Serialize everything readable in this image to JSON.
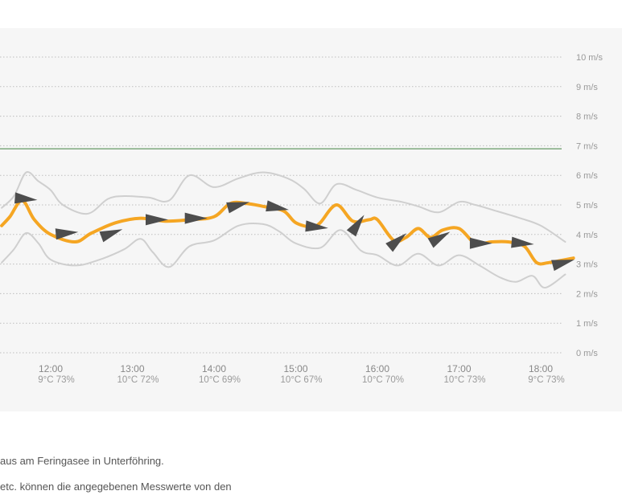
{
  "chart_data": {
    "type": "line",
    "y_unit": "m/s",
    "ylim": [
      0,
      10
    ],
    "y_ticks": [
      {
        "value": 10,
        "label": "10 m/s"
      },
      {
        "value": 9,
        "label": "9 m/s"
      },
      {
        "value": 8,
        "label": "8 m/s"
      },
      {
        "value": 7,
        "label": "7 m/s"
      },
      {
        "value": 6,
        "label": "6 m/s"
      },
      {
        "value": 5,
        "label": "5 m/s"
      },
      {
        "value": 4,
        "label": "4 m/s"
      },
      {
        "value": 3,
        "label": "3 m/s"
      },
      {
        "value": 2,
        "label": "2 m/s"
      },
      {
        "value": 1,
        "label": "1 m/s"
      },
      {
        "value": 0,
        "label": "0 m/s"
      }
    ],
    "x_ticks": [
      {
        "time": "12:00",
        "info": "9°C 73%"
      },
      {
        "time": "13:00",
        "info": "10°C 72%"
      },
      {
        "time": "14:00",
        "info": "10°C 69%"
      },
      {
        "time": "15:00",
        "info": "10°C 67%"
      },
      {
        "time": "16:00",
        "info": "10°C 70%"
      },
      {
        "time": "17:00",
        "info": "10°C 73%"
      },
      {
        "time": "18:00",
        "info": "9°C 73%"
      }
    ],
    "reference_line": {
      "value": 6.9,
      "color": "#3f7f3f"
    },
    "grid": "dotted",
    "series": [
      {
        "role": "average",
        "color": "#f5a623",
        "points": [
          [
            11.4,
            4.3
          ],
          [
            11.5,
            4.6
          ],
          [
            11.65,
            5.15
          ],
          [
            11.8,
            4.5
          ],
          [
            12.0,
            4.0
          ],
          [
            12.3,
            3.75
          ],
          [
            12.5,
            4.05
          ],
          [
            12.8,
            4.4
          ],
          [
            13.1,
            4.55
          ],
          [
            13.4,
            4.45
          ],
          [
            13.7,
            4.5
          ],
          [
            14.0,
            4.6
          ],
          [
            14.2,
            5.05
          ],
          [
            14.4,
            5.05
          ],
          [
            14.6,
            4.95
          ],
          [
            14.85,
            4.8
          ],
          [
            15.0,
            4.4
          ],
          [
            15.2,
            4.25
          ],
          [
            15.3,
            4.4
          ],
          [
            15.5,
            5.0
          ],
          [
            15.7,
            4.45
          ],
          [
            15.9,
            4.5
          ],
          [
            16.0,
            4.5
          ],
          [
            16.2,
            3.8
          ],
          [
            16.35,
            3.9
          ],
          [
            16.5,
            4.2
          ],
          [
            16.65,
            3.9
          ],
          [
            16.8,
            4.15
          ],
          [
            17.0,
            4.2
          ],
          [
            17.2,
            3.7
          ],
          [
            17.4,
            3.75
          ],
          [
            17.6,
            3.75
          ],
          [
            17.8,
            3.6
          ],
          [
            17.95,
            3.05
          ],
          [
            18.1,
            3.05
          ],
          [
            18.4,
            3.2
          ]
        ]
      },
      {
        "role": "gust-max",
        "color": "#cfcfcf",
        "points": [
          [
            11.4,
            4.9
          ],
          [
            11.55,
            5.3
          ],
          [
            11.7,
            6.1
          ],
          [
            11.85,
            5.8
          ],
          [
            12.0,
            5.5
          ],
          [
            12.15,
            5.0
          ],
          [
            12.45,
            4.7
          ],
          [
            12.7,
            5.2
          ],
          [
            12.9,
            5.3
          ],
          [
            13.2,
            5.25
          ],
          [
            13.45,
            5.15
          ],
          [
            13.7,
            6.0
          ],
          [
            14.0,
            5.6
          ],
          [
            14.3,
            5.9
          ],
          [
            14.6,
            6.1
          ],
          [
            14.9,
            5.9
          ],
          [
            15.1,
            5.55
          ],
          [
            15.3,
            5.05
          ],
          [
            15.5,
            5.7
          ],
          [
            15.75,
            5.5
          ],
          [
            16.0,
            5.25
          ],
          [
            16.3,
            5.1
          ],
          [
            16.5,
            4.95
          ],
          [
            16.75,
            4.75
          ],
          [
            17.0,
            5.1
          ],
          [
            17.2,
            5.0
          ],
          [
            17.45,
            4.8
          ],
          [
            17.75,
            4.55
          ],
          [
            18.0,
            4.3
          ],
          [
            18.3,
            3.75
          ]
        ]
      },
      {
        "role": "gust-min",
        "color": "#cfcfcf",
        "points": [
          [
            11.4,
            3.05
          ],
          [
            11.55,
            3.5
          ],
          [
            11.7,
            4.05
          ],
          [
            11.85,
            3.7
          ],
          [
            12.0,
            3.15
          ],
          [
            12.3,
            2.95
          ],
          [
            12.6,
            3.15
          ],
          [
            12.9,
            3.5
          ],
          [
            13.1,
            3.85
          ],
          [
            13.25,
            3.4
          ],
          [
            13.45,
            2.9
          ],
          [
            13.7,
            3.6
          ],
          [
            14.0,
            3.8
          ],
          [
            14.3,
            4.3
          ],
          [
            14.6,
            4.35
          ],
          [
            14.8,
            4.1
          ],
          [
            15.0,
            3.7
          ],
          [
            15.3,
            3.55
          ],
          [
            15.55,
            4.15
          ],
          [
            15.8,
            3.45
          ],
          [
            16.0,
            3.3
          ],
          [
            16.25,
            2.95
          ],
          [
            16.5,
            3.35
          ],
          [
            16.75,
            2.95
          ],
          [
            17.0,
            3.3
          ],
          [
            17.25,
            2.95
          ],
          [
            17.5,
            2.55
          ],
          [
            17.7,
            2.4
          ],
          [
            17.9,
            2.6
          ],
          [
            18.05,
            2.2
          ],
          [
            18.3,
            2.65
          ]
        ]
      }
    ],
    "wind_arrows": [
      {
        "time": 11.7,
        "speed": 5.2,
        "direction_deg": 185
      },
      {
        "time": 12.2,
        "speed": 4.05,
        "direction_deg": 175
      },
      {
        "time": 12.75,
        "speed": 4.05,
        "direction_deg": 160
      },
      {
        "time": 13.3,
        "speed": 4.5,
        "direction_deg": 180
      },
      {
        "time": 13.78,
        "speed": 4.55,
        "direction_deg": 180
      },
      {
        "time": 14.3,
        "speed": 5.0,
        "direction_deg": 165
      },
      {
        "time": 14.78,
        "speed": 4.9,
        "direction_deg": 190
      },
      {
        "time": 15.26,
        "speed": 4.25,
        "direction_deg": 185
      },
      {
        "time": 15.76,
        "speed": 4.35,
        "direction_deg": 125
      },
      {
        "time": 16.25,
        "speed": 3.8,
        "direction_deg": 140
      },
      {
        "time": 16.77,
        "speed": 3.9,
        "direction_deg": 150
      },
      {
        "time": 17.27,
        "speed": 3.7,
        "direction_deg": 180
      },
      {
        "time": 17.78,
        "speed": 3.7,
        "direction_deg": 185
      },
      {
        "time": 18.28,
        "speed": 3.05,
        "direction_deg": 165
      }
    ]
  },
  "caption": {
    "line1": "aus am Feringasee in Unterföhring.",
    "line2": "etc. können die angegebenen Messwerte von den"
  }
}
